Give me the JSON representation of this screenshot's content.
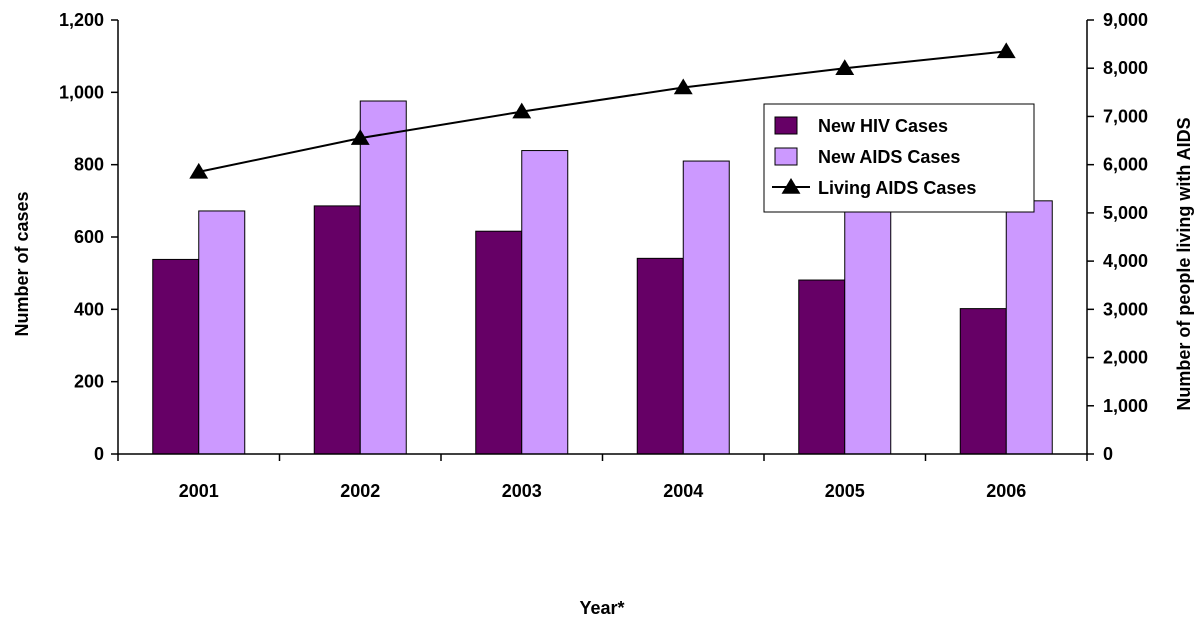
{
  "chart_data": {
    "type": "bar",
    "categories": [
      "2001",
      "2002",
      "2003",
      "2004",
      "2005",
      "2006"
    ],
    "series": [
      {
        "name": "New HIV Cases",
        "type": "bar",
        "axis": "left",
        "color": "#660066",
        "values": [
          538,
          686,
          616,
          541,
          481,
          402
        ]
      },
      {
        "name": "New AIDS Cases",
        "type": "bar",
        "axis": "left",
        "color": "#cc99ff",
        "values": [
          672,
          976,
          839,
          810,
          677,
          700
        ]
      },
      {
        "name": "Living AIDS Cases",
        "type": "line",
        "axis": "right",
        "color": "#000000",
        "marker": "triangle",
        "values": [
          5850,
          6550,
          7100,
          7600,
          8000,
          8350
        ]
      }
    ],
    "xlabel": "Year*",
    "ylabel": "Number of cases",
    "y2label": "Number of people living with AIDS",
    "ylim": [
      0,
      1200
    ],
    "y2lim": [
      0,
      9000
    ],
    "yticks": [
      "0",
      "200",
      "400",
      "600",
      "800",
      "1,000",
      "1,200"
    ],
    "y2ticks": [
      "0",
      "1,000",
      "2,000",
      "3,000",
      "4,000",
      "5,000",
      "6,000",
      "7,000",
      "8,000",
      "9,000"
    ],
    "grid": false,
    "legend_position": "top-right"
  }
}
